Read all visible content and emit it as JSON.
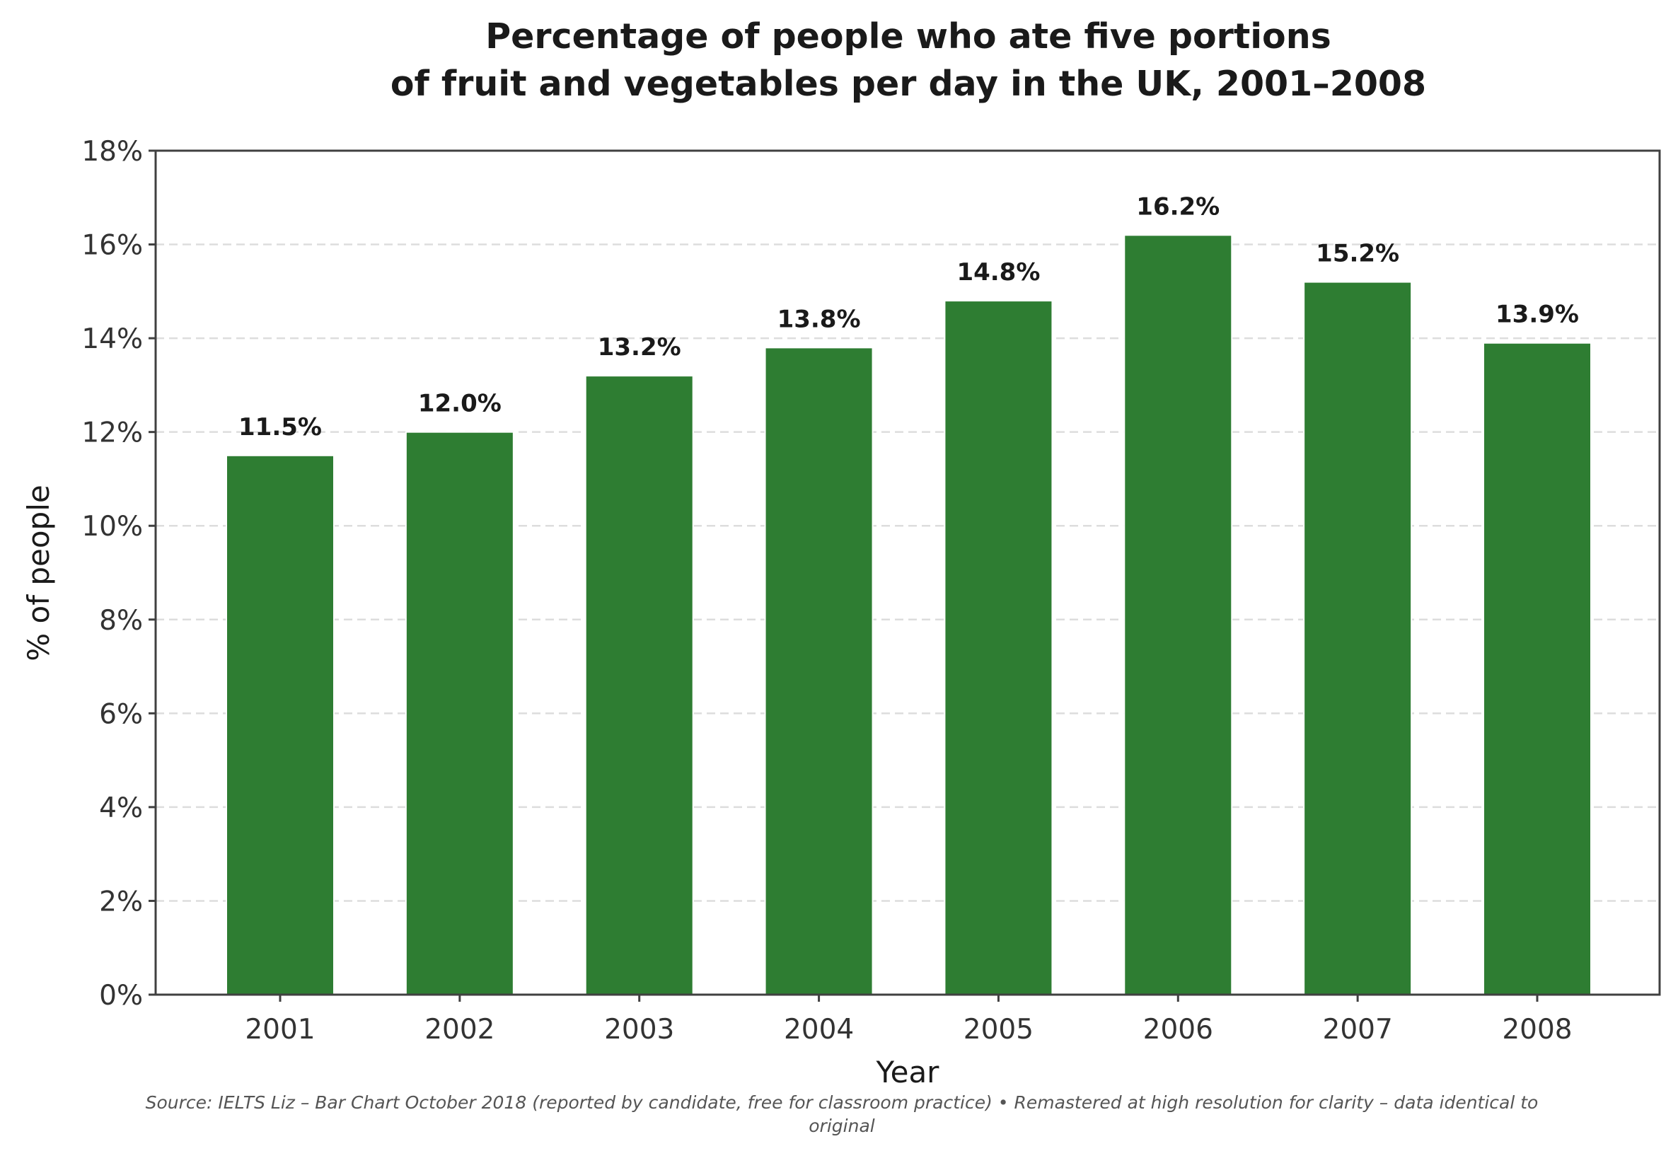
{
  "chart_data": {
    "type": "bar",
    "title_lines": [
      "Percentage of people who ate five portions",
      "of fruit and vegetables per day in the UK, 2001–2008"
    ],
    "xlabel": "Year",
    "ylabel": "% of people",
    "categories": [
      "2001",
      "2002",
      "2003",
      "2004",
      "2005",
      "2006",
      "2007",
      "2008"
    ],
    "values": [
      11.5,
      12.0,
      13.2,
      13.8,
      14.8,
      16.2,
      15.2,
      13.9
    ],
    "data_labels": [
      "11.5%",
      "12.0%",
      "13.2%",
      "13.8%",
      "14.8%",
      "16.2%",
      "15.2%",
      "13.9%"
    ],
    "ylim": [
      0,
      18
    ],
    "yticks": [
      0,
      2,
      4,
      6,
      8,
      10,
      12,
      14,
      16,
      18
    ],
    "ytick_labels": [
      "0%",
      "2%",
      "4%",
      "6%",
      "8%",
      "10%",
      "12%",
      "14%",
      "16%",
      "18%"
    ],
    "grid": "horizontal-dashed",
    "bar_color": "#2e7d32",
    "source_lines": [
      "Source: IELTS Liz – Bar Chart October 2018 (reported by candidate, free for classroom practice)  •  Remastered at high resolution for clarity – data identical to",
      "original"
    ]
  }
}
